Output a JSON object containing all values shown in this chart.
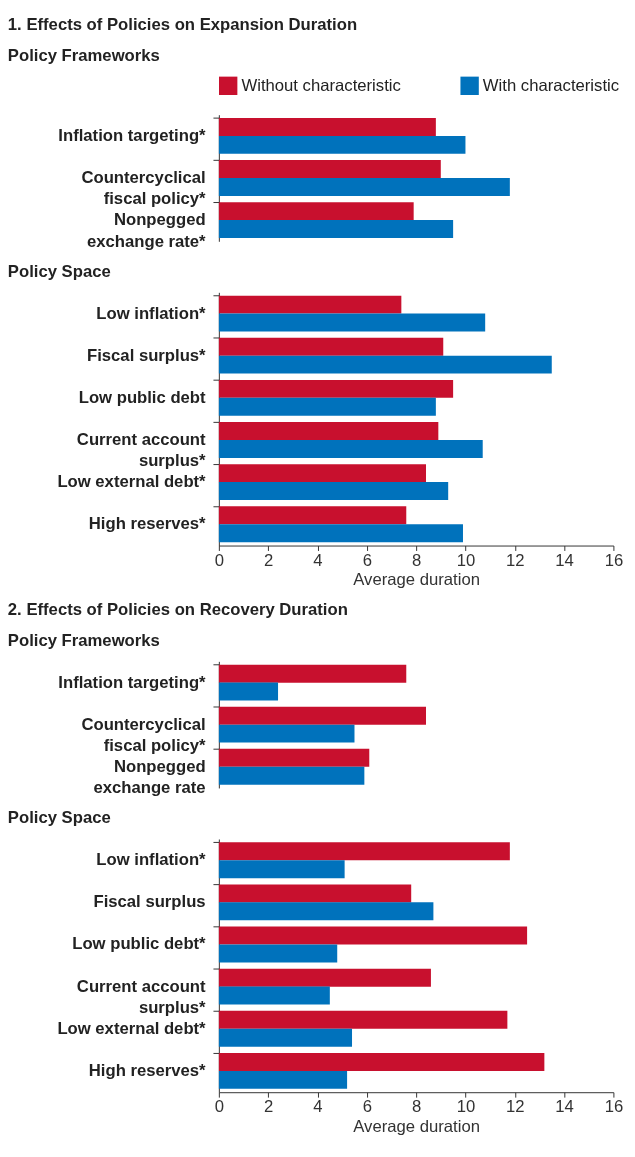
{
  "chart_data": [
    {
      "type": "bar",
      "orientation": "horizontal",
      "title": "1. Effects of Policies on Expansion Duration",
      "subtitle": "Policy Frameworks",
      "legend": "top",
      "tick_labels": "y",
      "grid": false,
      "categories": [
        "Inflation targeting*",
        "Countercyclical\nfiscal policy*",
        "Nonpegged\nexchange rate*"
      ],
      "xlim": [
        0,
        16
      ],
      "xticks": [
        0,
        2,
        4,
        6,
        8,
        10,
        12,
        14,
        16
      ],
      "series": [
        {
          "name": "Without characteristic",
          "color": "#c8102e",
          "values": [
            8.8,
            9.0,
            7.9
          ]
        },
        {
          "name": "With characteristic",
          "color": "#0072bc",
          "values": [
            10.0,
            11.8,
            9.5
          ]
        }
      ]
    },
    {
      "type": "bar",
      "orientation": "horizontal",
      "subtitle": "Policy Space",
      "xlabel": "Average duration",
      "grid": false,
      "categories": [
        "Low inflation*",
        "Fiscal surplus*",
        "Low public debt",
        "Current account\nsurplus*",
        "Low external debt*",
        "High reserves*"
      ],
      "xlim": [
        0,
        16
      ],
      "xticks": [
        0,
        2,
        4,
        6,
        8,
        10,
        12,
        14,
        16
      ],
      "series": [
        {
          "color": "#c8102e",
          "values": [
            7.4,
            9.1,
            9.5,
            8.9,
            8.4,
            7.6
          ]
        },
        {
          "color": "#0072bc",
          "values": [
            10.8,
            13.5,
            8.8,
            10.7,
            9.3,
            9.9
          ]
        }
      ]
    },
    {
      "type": "bar",
      "orientation": "horizontal",
      "title": "2. Effects of Policies on Recovery Duration",
      "subtitle": "Policy Frameworks",
      "tick_labels": "y",
      "grid": false,
      "categories": [
        "Inflation targeting*",
        "Countercyclical\nfiscal policy*",
        "Nonpegged\nexchange rate"
      ],
      "xlim": [
        0,
        16
      ],
      "xticks": [
        0,
        2,
        4,
        6,
        8,
        10,
        12,
        14,
        16
      ],
      "series": [
        {
          "color": "#c8102e",
          "values": [
            7.6,
            8.4,
            6.1
          ]
        },
        {
          "color": "#0072bc",
          "values": [
            2.4,
            5.5,
            5.9
          ]
        }
      ]
    },
    {
      "type": "bar",
      "orientation": "horizontal",
      "subtitle": "Policy Space",
      "xlabel": "Average duration",
      "grid": false,
      "categories": [
        "Low inflation*",
        "Fiscal surplus",
        "Low public debt*",
        "Current account\nsurplus*",
        "Low external debt*",
        "High reserves*"
      ],
      "xlim": [
        0,
        16
      ],
      "xticks": [
        0,
        2,
        4,
        6,
        8,
        10,
        12,
        14,
        16
      ],
      "series": [
        {
          "color": "#c8102e",
          "values": [
            11.8,
            7.8,
            12.5,
            8.6,
            11.7,
            13.2
          ]
        },
        {
          "color": "#0072bc",
          "values": [
            5.1,
            8.7,
            4.8,
            4.5,
            5.4,
            5.2
          ]
        }
      ]
    }
  ]
}
